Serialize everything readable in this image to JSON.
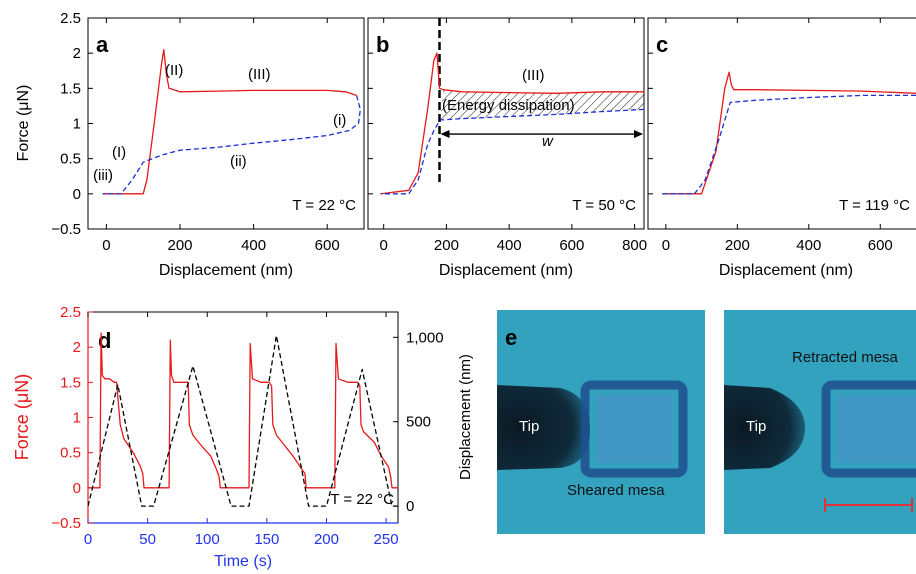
{
  "colors": {
    "force": "#e8191b",
    "displacement": "#1a2fd6",
    "axis_blue": "#2233ee",
    "photo_bg": "#2e9ebc",
    "scale_bar": "#e0303a"
  },
  "chart_data": [
    {
      "panel": "a",
      "type": "line",
      "xlabel": "Displacement (nm)",
      "ylabel": "Force (μN)",
      "xlim": [
        -50,
        700
      ],
      "ylim": [
        -0.5,
        2.5
      ],
      "xticks": [
        "0",
        "200",
        "400",
        "600"
      ],
      "yticks": [
        "−0.5",
        "0",
        "0.5",
        "1",
        "1.5",
        "2",
        "2.5"
      ],
      "temperature_label": "T = 22 °C",
      "annotations": [
        "(I)",
        "(II)",
        "(III)",
        "(i)",
        "(ii)",
        "(iii)"
      ],
      "series": [
        {
          "style": "solid",
          "color": "#e8191b",
          "x": [
            -10,
            100,
            110,
            130,
            150,
            156,
            163,
            170,
            200,
            300,
            400,
            500,
            600,
            650,
            680
          ],
          "y": [
            0,
            0,
            0.2,
            1.0,
            1.85,
            2.05,
            1.7,
            1.5,
            1.45,
            1.46,
            1.47,
            1.47,
            1.47,
            1.45,
            1.4
          ]
        },
        {
          "style": "dashed",
          "color": "#1a2fd6",
          "x": [
            680,
            690,
            685,
            660,
            600,
            500,
            400,
            300,
            200,
            150,
            100,
            70,
            40,
            0,
            -10
          ],
          "y": [
            1.4,
            1.2,
            1.0,
            0.9,
            0.83,
            0.77,
            0.72,
            0.66,
            0.62,
            0.55,
            0.45,
            0.2,
            0.0,
            0.0,
            0.0
          ]
        }
      ]
    },
    {
      "panel": "b",
      "type": "line",
      "xlabel": "Displacement (nm)",
      "xlim": [
        -50,
        830
      ],
      "ylim": [
        -0.5,
        2.5
      ],
      "xticks": [
        "0",
        "200",
        "400",
        "600",
        "800"
      ],
      "temperature_label": "T = 50 °C",
      "annotations": [
        "(III)",
        "(Energy dissipation)",
        "w"
      ],
      "series": [
        {
          "style": "solid",
          "color": "#e8191b",
          "x": [
            -10,
            80,
            110,
            140,
            160,
            170,
            178,
            190,
            250,
            400,
            550,
            700,
            830
          ],
          "y": [
            0,
            0.05,
            0.3,
            1.2,
            1.9,
            2.0,
            1.5,
            1.48,
            1.45,
            1.44,
            1.43,
            1.45,
            1.45
          ]
        },
        {
          "style": "dashed",
          "color": "#1a2fd6",
          "x": [
            830,
            700,
            550,
            400,
            250,
            180,
            160,
            140,
            110,
            80,
            -10
          ],
          "y": [
            1.2,
            1.17,
            1.13,
            1.1,
            1.07,
            1.05,
            0.9,
            0.7,
            0.2,
            0.0,
            0.0
          ]
        }
      ]
    },
    {
      "panel": "c",
      "type": "line",
      "xlabel": "Displacement (nm)",
      "xlim": [
        -50,
        700
      ],
      "ylim": [
        -0.5,
        2.5
      ],
      "xticks": [
        "0",
        "200",
        "400",
        "600"
      ],
      "temperature_label": "T = 119 °C",
      "series": [
        {
          "style": "solid",
          "color": "#e8191b",
          "x": [
            -10,
            100,
            140,
            165,
            177,
            183,
            190,
            250,
            400,
            550,
            700
          ],
          "y": [
            0,
            0,
            0.6,
            1.5,
            1.73,
            1.55,
            1.48,
            1.48,
            1.47,
            1.46,
            1.43
          ]
        },
        {
          "style": "dashed",
          "color": "#1a2fd6",
          "x": [
            700,
            550,
            400,
            250,
            180,
            150,
            110,
            80,
            -10
          ],
          "y": [
            1.4,
            1.4,
            1.37,
            1.33,
            1.3,
            0.8,
            0.2,
            0.0,
            0.0
          ]
        }
      ]
    },
    {
      "panel": "d",
      "type": "line",
      "xlabel": "Time (s)",
      "ylabel": "Force (μN)",
      "ylabel_right": "Displacement (nm)",
      "xlim": [
        0,
        260
      ],
      "ylim": [
        -0.5,
        2.5
      ],
      "ylim_right": [
        -100,
        1150
      ],
      "xticks": [
        "0",
        "50",
        "100",
        "150",
        "200",
        "250"
      ],
      "yticks": [
        "−0.5",
        "0",
        "0.5",
        "1",
        "1.5",
        "2",
        "2.5"
      ],
      "yticks_right": [
        "0",
        "500",
        "1,000"
      ],
      "temperature_label": "T = 22 °C",
      "series": [
        {
          "axis": "left",
          "style": "solid",
          "color": "#e8191b",
          "x": [
            0,
            10,
            11,
            12,
            14,
            18,
            22,
            24,
            27,
            30,
            38,
            44,
            46,
            47,
            50,
            58,
            66,
            68,
            69,
            70,
            72,
            78,
            84,
            85,
            88,
            95,
            103,
            108,
            110,
            111,
            115,
            128,
            133,
            135,
            136,
            138,
            145,
            152,
            154,
            155,
            158,
            165,
            172,
            178,
            182,
            183,
            186,
            198,
            205,
            207,
            208,
            210,
            218,
            226,
            228,
            229,
            231,
            240,
            246,
            252,
            254,
            255,
            260
          ],
          "y": [
            0,
            0,
            2.2,
            1.6,
            1.55,
            1.55,
            1.5,
            1.5,
            0.9,
            0.7,
            0.5,
            0.3,
            0.2,
            0,
            0,
            0,
            0,
            0,
            2.1,
            1.6,
            1.5,
            1.5,
            1.5,
            0.9,
            0.75,
            0.6,
            0.45,
            0.25,
            0.15,
            0,
            0,
            0,
            0,
            0,
            2.05,
            1.55,
            1.5,
            1.5,
            1.45,
            0.9,
            0.75,
            0.6,
            0.45,
            0.3,
            0.2,
            0,
            0,
            0,
            0,
            0,
            2.05,
            1.55,
            1.5,
            1.5,
            1.45,
            0.9,
            0.8,
            0.65,
            0.45,
            0.3,
            0.15,
            0,
            0
          ]
        },
        {
          "axis": "right",
          "style": "dashed",
          "color": "#000000",
          "x": [
            0,
            25,
            45,
            55,
            88,
            120,
            135,
            158,
            185,
            200,
            230,
            255,
            260
          ],
          "y": [
            0,
            720,
            0,
            0,
            830,
            0,
            0,
            1010,
            0,
            0,
            810,
            0,
            0
          ]
        }
      ]
    }
  ],
  "photo": {
    "panel": "e",
    "left_tip_label": "Tip",
    "left_caption": "Sheared mesa",
    "right_tip_label": "Tip",
    "right_caption": "Retracted mesa"
  }
}
